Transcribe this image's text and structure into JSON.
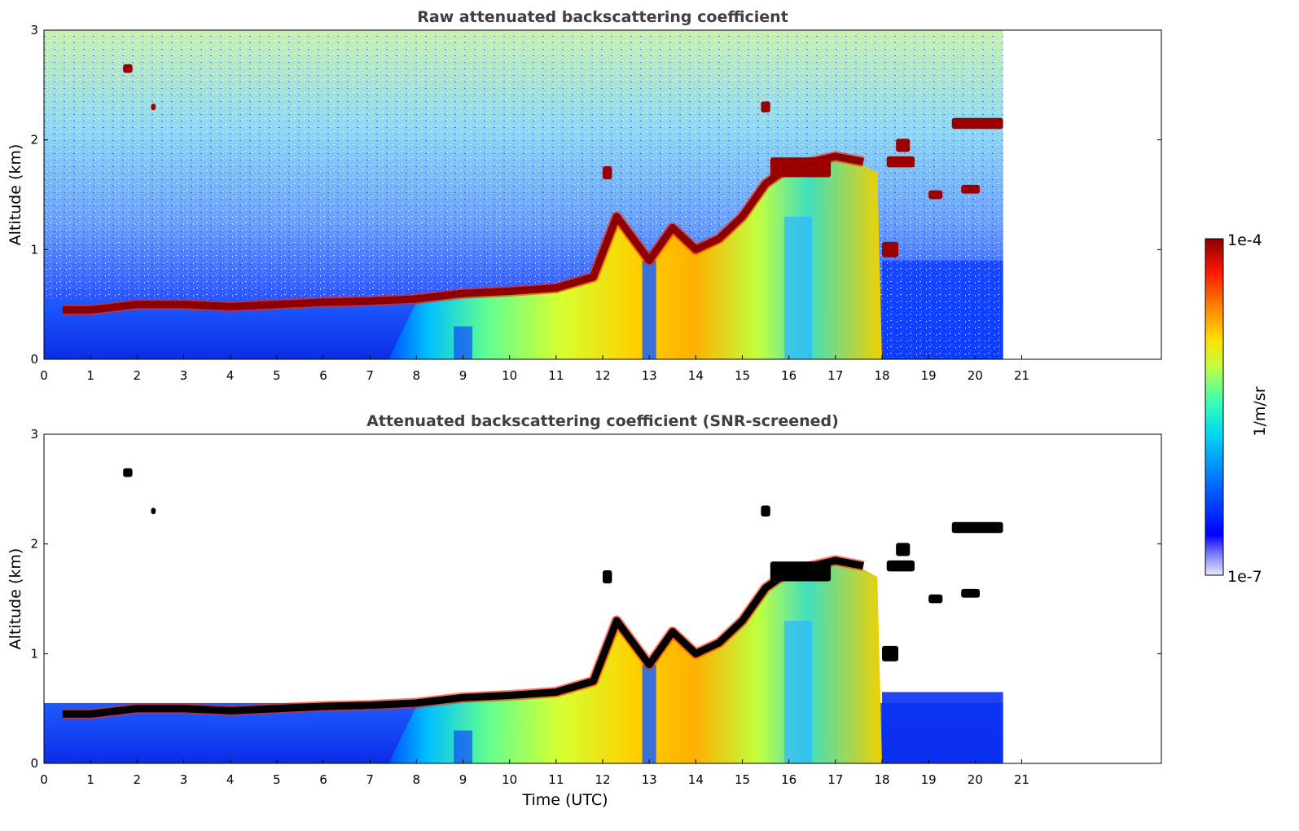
{
  "chart_data": [
    {
      "type": "heatmap",
      "title": "Raw attenuated backscattering coefficient",
      "xlabel": "",
      "ylabel": "Altitude (km)",
      "xlim": [
        0,
        24
      ],
      "ylim": [
        0,
        3
      ],
      "xticks": [
        "0",
        "1",
        "2",
        "3",
        "4",
        "5",
        "6",
        "7",
        "8",
        "9",
        "10",
        "11",
        "12",
        "13",
        "14",
        "15",
        "16",
        "17",
        "18",
        "19",
        "20",
        "21"
      ],
      "yticks": [
        "0",
        "1",
        "2",
        "3"
      ],
      "data_end_time": 20.6,
      "boundary_layer_top_km": [
        [
          0.4,
          0.45
        ],
        [
          1,
          0.45
        ],
        [
          2,
          0.5
        ],
        [
          3,
          0.5
        ],
        [
          4,
          0.48
        ],
        [
          5,
          0.5
        ],
        [
          6,
          0.52
        ],
        [
          7,
          0.53
        ],
        [
          8,
          0.55
        ],
        [
          9,
          0.6
        ],
        [
          10,
          0.62
        ],
        [
          11,
          0.65
        ],
        [
          11.8,
          0.75
        ],
        [
          12.3,
          1.3
        ],
        [
          13,
          0.9
        ],
        [
          13.5,
          1.2
        ],
        [
          14,
          1.0
        ],
        [
          14.5,
          1.1
        ],
        [
          15,
          1.3
        ],
        [
          15.5,
          1.6
        ],
        [
          16,
          1.75
        ],
        [
          17,
          1.85
        ],
        [
          17.6,
          1.8
        ]
      ],
      "screened": false
    },
    {
      "type": "heatmap",
      "title": "Attenuated backscattering coefficient (SNR-screened)",
      "xlabel": "Time (UTC)",
      "ylabel": "Altitude (km)",
      "xlim": [
        0,
        24
      ],
      "ylim": [
        0,
        3
      ],
      "xticks": [
        "0",
        "1",
        "2",
        "3",
        "4",
        "5",
        "6",
        "7",
        "8",
        "9",
        "10",
        "11",
        "12",
        "13",
        "14",
        "15",
        "16",
        "17",
        "18",
        "19",
        "20",
        "21"
      ],
      "yticks": [
        "0",
        "1",
        "2",
        "3"
      ],
      "data_end_time": 20.6,
      "screened": true
    }
  ],
  "colorbar": {
    "label": "1/m/sr",
    "max_label": "1e-4",
    "min_label": "1e-7",
    "colormap": [
      "#f0f0ff",
      "#0000ff",
      "#0080ff",
      "#00d0ff",
      "#40ffb0",
      "#c0ff40",
      "#ffe000",
      "#ff8000",
      "#ff2000",
      "#900000"
    ]
  }
}
